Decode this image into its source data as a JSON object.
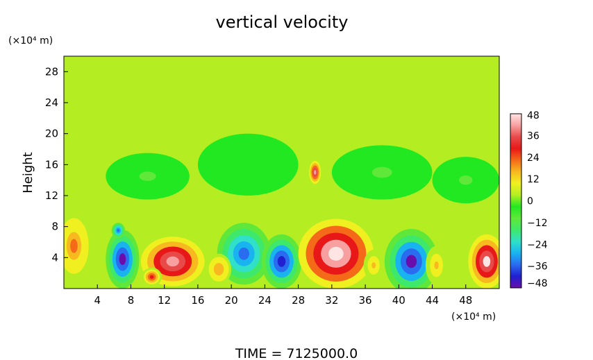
{
  "chart_data": {
    "type": "heatmap",
    "title": "vertical velocity",
    "xlabel": "",
    "ylabel": "Height",
    "x_unit": "(×10⁴ m)",
    "y_unit": "(×10⁴ m)",
    "footer": "TIME = 7125000.0",
    "xlim": [
      0,
      52
    ],
    "ylim": [
      0,
      30
    ],
    "x_ticks": [
      4,
      8,
      12,
      16,
      20,
      24,
      28,
      32,
      36,
      40,
      44,
      48
    ],
    "y_ticks": [
      4,
      8,
      12,
      16,
      20,
      24,
      28
    ],
    "colorbar": {
      "min": -48,
      "max": 48,
      "ticks": [
        48,
        36,
        24,
        12,
        0,
        -12,
        -24,
        -36,
        -48
      ],
      "colors": [
        "#6a0dad",
        "#2020d0",
        "#2a6cf0",
        "#19b4f0",
        "#30e0c8",
        "#3ee86a",
        "#5fe83a",
        "#22e822",
        "#b4ee22",
        "#f0f020",
        "#f8b820",
        "#f46a18",
        "#e81818",
        "#e84a4a",
        "#f8a0a0",
        "#ffe4e4"
      ]
    },
    "background_value": 0,
    "features": [
      {
        "x": 1.2,
        "y": 5.5,
        "rx": 2.2,
        "ry": 4.5,
        "value": 20
      },
      {
        "x": 7.0,
        "y": 3.8,
        "rx": 2.0,
        "ry": 3.8,
        "value": -48
      },
      {
        "x": 6.5,
        "y": 7.5,
        "rx": 0.8,
        "ry": 1.0,
        "value": -36
      },
      {
        "x": 13.0,
        "y": 3.5,
        "rx": 3.8,
        "ry": 3.2,
        "value": 44
      },
      {
        "x": 10.5,
        "y": 1.5,
        "rx": 1.2,
        "ry": 1.2,
        "value": 30
      },
      {
        "x": 21.5,
        "y": 4.5,
        "rx": 3.2,
        "ry": 4.0,
        "value": -38
      },
      {
        "x": 26.0,
        "y": 3.5,
        "rx": 2.4,
        "ry": 3.5,
        "value": -44
      },
      {
        "x": 32.5,
        "y": 4.5,
        "rx": 4.5,
        "ry": 4.5,
        "value": 48
      },
      {
        "x": 30.0,
        "y": 15.0,
        "rx": 0.7,
        "ry": 1.5,
        "value": 40
      },
      {
        "x": 41.5,
        "y": 3.5,
        "rx": 3.2,
        "ry": 4.2,
        "value": -48
      },
      {
        "x": 50.5,
        "y": 3.5,
        "rx": 2.2,
        "ry": 3.5,
        "value": 46
      },
      {
        "x": 18.5,
        "y": 2.5,
        "rx": 1.5,
        "ry": 2.0,
        "value": 18
      },
      {
        "x": 37.0,
        "y": 3.0,
        "rx": 1.2,
        "ry": 2.0,
        "value": 14
      },
      {
        "x": 44.5,
        "y": 3.0,
        "rx": 1.3,
        "ry": 2.5,
        "value": 15
      },
      {
        "x": 10.0,
        "y": 14.5,
        "rx": 5.0,
        "ry": 3.0,
        "value": -8
      },
      {
        "x": 22.0,
        "y": 16.0,
        "rx": 6.0,
        "ry": 4.0,
        "value": -6
      },
      {
        "x": 38.0,
        "y": 15.0,
        "rx": 6.0,
        "ry": 3.5,
        "value": -7
      },
      {
        "x": 48.0,
        "y": 14.0,
        "rx": 4.0,
        "ry": 3.0,
        "value": -8
      }
    ]
  }
}
